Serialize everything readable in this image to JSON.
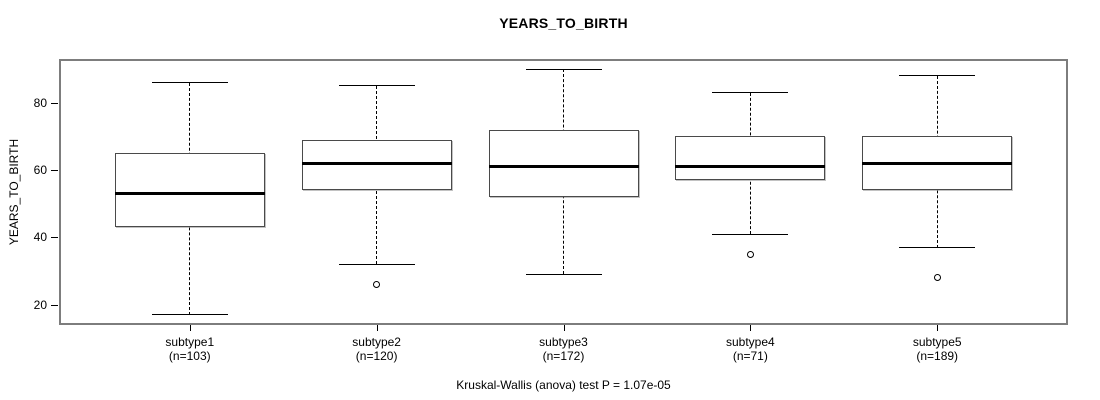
{
  "chart_data": {
    "type": "boxplot",
    "title": "YEARS_TO_BIRTH",
    "ylabel": "YEARS_TO_BIRTH",
    "xlabel": "",
    "ylim": [
      14,
      93
    ],
    "yticks": [
      20,
      40,
      60,
      80
    ],
    "grid": false,
    "annotation": "Kruskal-Wallis (anova) test P = 1.07e-05",
    "groups": [
      {
        "label": "subtype1",
        "n_label": "(n=103)",
        "n": 103,
        "whisker_low": 17,
        "q1": 43,
        "median": 53,
        "q3": 65,
        "whisker_high": 86,
        "outliers": []
      },
      {
        "label": "subtype2",
        "n_label": "(n=120)",
        "n": 120,
        "whisker_low": 32,
        "q1": 54,
        "median": 62,
        "q3": 69,
        "whisker_high": 85,
        "outliers": [
          26
        ]
      },
      {
        "label": "subtype3",
        "n_label": "(n=172)",
        "n": 172,
        "whisker_low": 29,
        "q1": 52,
        "median": 61,
        "q3": 72,
        "whisker_high": 90,
        "outliers": []
      },
      {
        "label": "subtype4",
        "n_label": "(n=71)",
        "n": 71,
        "whisker_low": 41,
        "q1": 57,
        "median": 61,
        "q3": 70,
        "whisker_high": 83,
        "outliers": [
          35
        ]
      },
      {
        "label": "subtype5",
        "n_label": "(n=189)",
        "n": 189,
        "whisker_low": 37,
        "q1": 54,
        "median": 62,
        "q3": 70,
        "whisker_high": 88,
        "outliers": [
          28
        ]
      }
    ]
  },
  "colors": {
    "background": "#ffffff",
    "frame": "#7d7d7d",
    "box_border": "#4a4a4a",
    "median": "#000000",
    "whisker": "#000000",
    "text": "#000000"
  }
}
